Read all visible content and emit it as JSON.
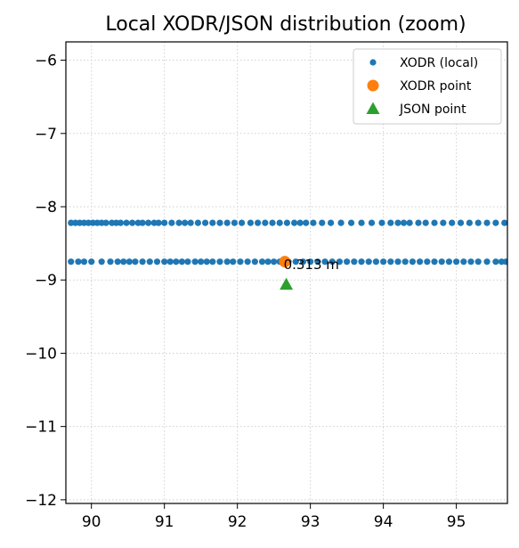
{
  "chart_data": {
    "type": "scatter",
    "title": "Local XODR/JSON distribution (zoom)",
    "xlabel": "",
    "ylabel": "",
    "xlim": [
      89.65,
      95.7
    ],
    "ylim": [
      -12.05,
      -5.75
    ],
    "x_ticks": [
      90,
      91,
      92,
      93,
      94,
      95
    ],
    "y_ticks": [
      -6,
      -7,
      -8,
      -9,
      -10,
      -11,
      -12
    ],
    "x_tick_labels": [
      "90",
      "91",
      "92",
      "93",
      "94",
      "95"
    ],
    "y_tick_labels": [
      "−6",
      "−7",
      "−8",
      "−9",
      "−10",
      "−11",
      "−12"
    ],
    "grid": true,
    "legend_position": "top-right",
    "series": [
      {
        "name": "XODR (local)",
        "marker": "small-circle",
        "color": "#1f77b4",
        "lanes": [
          {
            "y": -8.22,
            "x": [
              89.72,
              89.78,
              89.84,
              89.9,
              89.96,
              90.02,
              90.08,
              90.14,
              90.2,
              90.28,
              90.34,
              90.4,
              90.48,
              90.56,
              90.64,
              90.7,
              90.78,
              90.86,
              90.92,
              91.0,
              91.1,
              91.2,
              91.28,
              91.36,
              91.46,
              91.56,
              91.66,
              91.76,
              91.86,
              91.96,
              92.06,
              92.18,
              92.28,
              92.38,
              92.48,
              92.58,
              92.68,
              92.78,
              92.86,
              92.94,
              93.04,
              93.16,
              93.28,
              93.42,
              93.56,
              93.7,
              93.84,
              93.98,
              94.1,
              94.2,
              94.28,
              94.36,
              94.48,
              94.58,
              94.7,
              94.82,
              94.94,
              95.06,
              95.18,
              95.3,
              95.42,
              95.54,
              95.66
            ]
          },
          {
            "y": -8.75,
            "x": [
              89.72,
              89.82,
              89.9,
              90.0,
              90.14,
              90.26,
              90.36,
              90.44,
              90.52,
              90.6,
              90.7,
              90.8,
              90.9,
              91.0,
              91.08,
              91.16,
              91.24,
              91.32,
              91.42,
              91.5,
              91.58,
              91.66,
              91.76,
              91.86,
              91.94,
              92.04,
              92.14,
              92.24,
              92.34,
              92.42,
              92.5,
              92.58,
              92.7,
              92.8,
              92.9,
              93.0,
              93.1,
              93.2,
              93.3,
              93.4,
              93.5,
              93.6,
              93.7,
              93.8,
              93.9,
              94.0,
              94.1,
              94.2,
              94.3,
              94.4,
              94.5,
              94.6,
              94.7,
              94.8,
              94.9,
              95.0,
              95.1,
              95.2,
              95.3,
              95.42,
              95.54,
              95.62,
              95.68
            ]
          }
        ]
      },
      {
        "name": "XODR point",
        "marker": "circle",
        "color": "#ff7f0e",
        "x": [
          92.65
        ],
        "y": [
          -8.75
        ]
      },
      {
        "name": "JSON point",
        "marker": "triangle",
        "color": "#2ca02c",
        "x": [
          92.67
        ],
        "y": [
          -9.06
        ]
      }
    ],
    "annotations": [
      {
        "text": "0.313 m",
        "x": 92.67,
        "y": -8.9
      }
    ]
  }
}
